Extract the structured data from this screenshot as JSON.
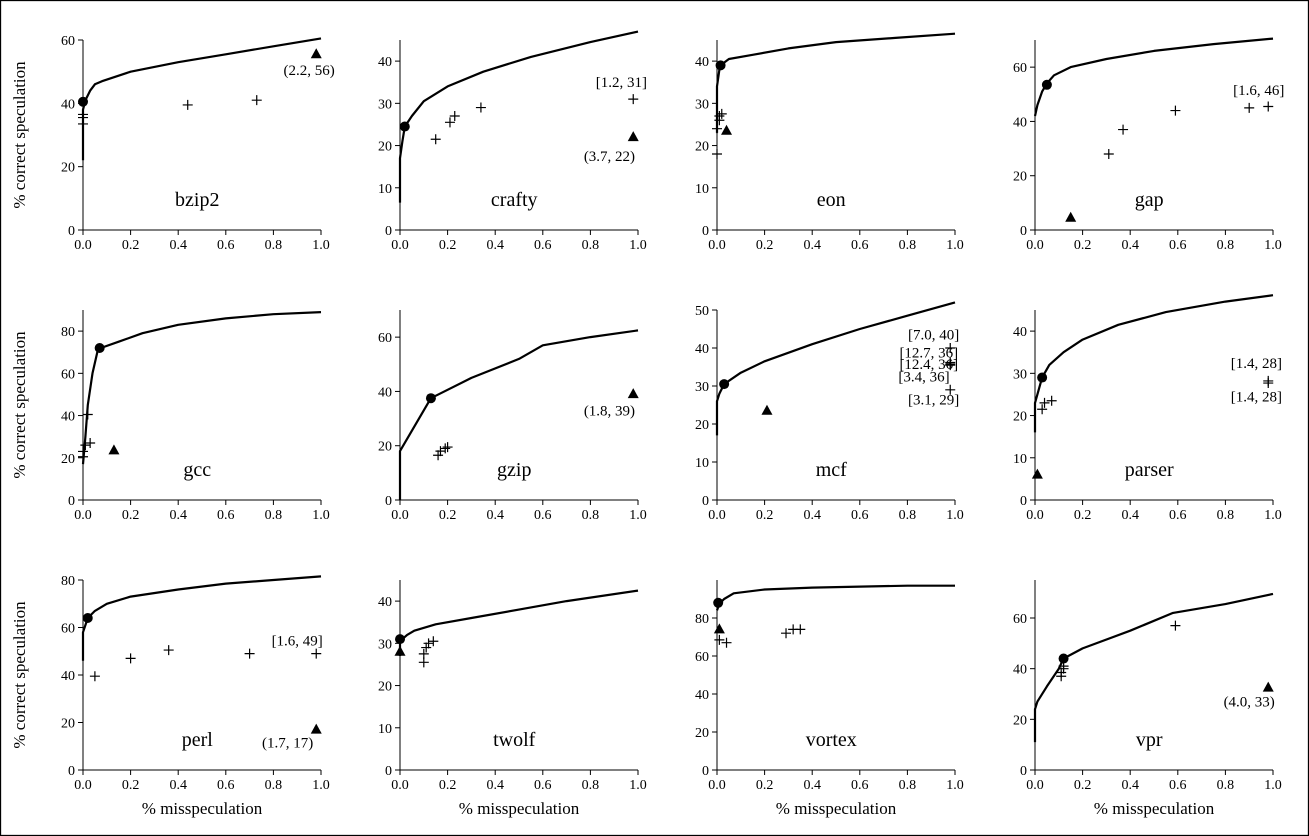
{
  "chart_data": [
    {
      "type": "scatter",
      "benchmark": "bzip2",
      "xlabel": "",
      "ylabel": "% correct speculation",
      "xlim": [
        0,
        1
      ],
      "ylim": [
        0,
        60
      ],
      "xticks": [
        "0.0",
        "0.2",
        "0.4",
        "0.6",
        "0.8",
        "1.0"
      ],
      "yticks": [
        "0",
        "20",
        "40",
        "60"
      ],
      "curve": [
        [
          0,
          22
        ],
        [
          0,
          38
        ],
        [
          0.01,
          41
        ],
        [
          0.03,
          44
        ],
        [
          0.05,
          46
        ],
        [
          0.08,
          47
        ],
        [
          0.2,
          50
        ],
        [
          0.4,
          53
        ],
        [
          0.6,
          55.5
        ],
        [
          0.8,
          58
        ],
        [
          1,
          60.5
        ]
      ],
      "highlight": [
        0,
        40.5
      ],
      "crosses": [
        [
          0,
          33.5
        ],
        [
          0,
          35.5
        ],
        [
          0,
          36.5
        ],
        [
          0.44,
          39.5
        ],
        [
          0.73,
          41
        ]
      ],
      "triangles": [
        [
          0.98,
          55.5
        ]
      ],
      "annotations": [
        {
          "text": "(2.2, 56)",
          "x": 0.95,
          "y": 50.5
        }
      ]
    },
    {
      "type": "scatter",
      "benchmark": "crafty",
      "xlabel": "",
      "ylabel": "",
      "xlim": [
        0,
        1
      ],
      "ylim": [
        0,
        45
      ],
      "xticks": [
        "0.0",
        "0.2",
        "0.4",
        "0.6",
        "0.8",
        "1.0"
      ],
      "yticks": [
        "0",
        "10",
        "20",
        "30",
        "40"
      ],
      "curve": [
        [
          0,
          6.5
        ],
        [
          0,
          17
        ],
        [
          0.01,
          21
        ],
        [
          0.02,
          24.5
        ],
        [
          0.05,
          27
        ],
        [
          0.1,
          30.5
        ],
        [
          0.2,
          34
        ],
        [
          0.35,
          37.5
        ],
        [
          0.55,
          41
        ],
        [
          0.8,
          44.5
        ],
        [
          1,
          47
        ]
      ],
      "highlight": [
        0.02,
        24.5
      ],
      "crosses": [
        [
          0.15,
          21.5
        ],
        [
          0.21,
          25.5
        ],
        [
          0.23,
          27
        ],
        [
          0.34,
          29
        ],
        [
          0.98,
          31
        ]
      ],
      "triangles": [
        [
          0.98,
          22
        ]
      ],
      "annotations": [
        {
          "text": "[1.2, 31]",
          "x": 0.93,
          "y": 35
        },
        {
          "text": "(3.7, 22)",
          "x": 0.88,
          "y": 17.5
        }
      ]
    },
    {
      "type": "scatter",
      "benchmark": "eon",
      "xlabel": "",
      "ylabel": "",
      "xlim": [
        0,
        1
      ],
      "ylim": [
        0,
        45
      ],
      "xticks": [
        "0.0",
        "0.2",
        "0.4",
        "0.6",
        "0.8",
        "1.0"
      ],
      "yticks": [
        "0",
        "10",
        "20",
        "30",
        "40"
      ],
      "curve": [
        [
          0,
          23
        ],
        [
          0,
          34
        ],
        [
          0.01,
          38
        ],
        [
          0.015,
          39
        ],
        [
          0.05,
          40.5
        ],
        [
          0.15,
          41.5
        ],
        [
          0.3,
          43
        ],
        [
          0.5,
          44.5
        ],
        [
          0.75,
          45.5
        ],
        [
          1,
          46.5
        ]
      ],
      "highlight": [
        0.015,
        39
      ],
      "crosses": [
        [
          0,
          18
        ],
        [
          0,
          24
        ],
        [
          0.01,
          26
        ],
        [
          0.01,
          27
        ],
        [
          0.02,
          27.5
        ]
      ],
      "triangles": [
        [
          0.04,
          23.5
        ]
      ],
      "annotations": []
    },
    {
      "type": "scatter",
      "benchmark": "gap",
      "xlabel": "",
      "ylabel": "",
      "xlim": [
        0,
        1
      ],
      "ylim": [
        0,
        70
      ],
      "xticks": [
        "0.0",
        "0.2",
        "0.4",
        "0.6",
        "0.8",
        "1.0"
      ],
      "yticks": [
        "0",
        "20",
        "40",
        "60"
      ],
      "curve": [
        [
          0,
          42
        ],
        [
          0.01,
          46
        ],
        [
          0.03,
          51
        ],
        [
          0.05,
          54
        ],
        [
          0.08,
          57
        ],
        [
          0.15,
          60
        ],
        [
          0.3,
          63
        ],
        [
          0.5,
          66
        ],
        [
          0.75,
          68.5
        ],
        [
          1,
          70.5
        ]
      ],
      "highlight": [
        0.05,
        53.5
      ],
      "crosses": [
        [
          0.31,
          28
        ],
        [
          0.37,
          37
        ],
        [
          0.59,
          44
        ],
        [
          0.9,
          45
        ],
        [
          0.98,
          45.5
        ]
      ],
      "triangles": [
        [
          0.15,
          4.5
        ]
      ],
      "annotations": [
        {
          "text": "[1.6, 46]",
          "x": 0.94,
          "y": 51.5
        }
      ]
    },
    {
      "type": "scatter",
      "benchmark": "gcc",
      "xlabel": "",
      "ylabel": "% correct speculation",
      "xlim": [
        0,
        1
      ],
      "ylim": [
        0,
        90
      ],
      "xticks": [
        "0.0",
        "0.2",
        "0.4",
        "0.6",
        "0.8",
        "1.0"
      ],
      "yticks": [
        "0",
        "20",
        "40",
        "60",
        "80"
      ],
      "curve": [
        [
          0,
          17
        ],
        [
          0.01,
          30
        ],
        [
          0.02,
          45
        ],
        [
          0.04,
          60
        ],
        [
          0.06,
          70
        ],
        [
          0.075,
          72
        ],
        [
          0.15,
          75
        ],
        [
          0.25,
          79
        ],
        [
          0.4,
          83
        ],
        [
          0.6,
          86
        ],
        [
          0.8,
          88
        ],
        [
          1,
          89
        ]
      ],
      "highlight": [
        0.07,
        72
      ],
      "crosses": [
        [
          0,
          20.5
        ],
        [
          0,
          23
        ],
        [
          0.01,
          26
        ],
        [
          0.03,
          27
        ],
        [
          0.02,
          40.5
        ]
      ],
      "triangles": [
        [
          0.13,
          23.5
        ]
      ],
      "annotations": []
    },
    {
      "type": "scatter",
      "benchmark": "gzip",
      "xlabel": "",
      "ylabel": "",
      "xlim": [
        0,
        1
      ],
      "ylim": [
        0,
        70
      ],
      "xticks": [
        "0.0",
        "0.2",
        "0.4",
        "0.6",
        "0.8",
        "1.0"
      ],
      "yticks": [
        "0",
        "20",
        "40",
        "60"
      ],
      "curve": [
        [
          0,
          0
        ],
        [
          0,
          18
        ],
        [
          0.13,
          37.5
        ],
        [
          0.3,
          45
        ],
        [
          0.5,
          52
        ],
        [
          0.6,
          57
        ],
        [
          0.8,
          60
        ],
        [
          1,
          62.5
        ]
      ],
      "highlight": [
        0.13,
        37.5
      ],
      "crosses": [
        [
          0.16,
          16.5
        ],
        [
          0.17,
          18
        ],
        [
          0.19,
          19
        ],
        [
          0.2,
          19.5
        ]
      ],
      "triangles": [
        [
          0.98,
          39
        ]
      ],
      "annotations": [
        {
          "text": "(1.8, 39)",
          "x": 0.88,
          "y": 33
        }
      ]
    },
    {
      "type": "scatter",
      "benchmark": "mcf",
      "xlabel": "",
      "ylabel": "",
      "xlim": [
        0,
        1
      ],
      "ylim": [
        0,
        50
      ],
      "xticks": [
        "0.0",
        "0.2",
        "0.4",
        "0.6",
        "0.8",
        "1.0"
      ],
      "yticks": [
        "0",
        "10",
        "20",
        "30",
        "40",
        "50"
      ],
      "curve": [
        [
          0,
          17
        ],
        [
          0,
          26
        ],
        [
          0.01,
          28
        ],
        [
          0.03,
          30.5
        ],
        [
          0.1,
          33.5
        ],
        [
          0.2,
          36.5
        ],
        [
          0.4,
          41
        ],
        [
          0.6,
          45
        ],
        [
          0.8,
          48.5
        ],
        [
          1,
          52
        ]
      ],
      "highlight": [
        0.03,
        30.5
      ],
      "crosses": [
        [
          0.98,
          40
        ],
        [
          0.98,
          36.2
        ],
        [
          0.98,
          35.8
        ],
        [
          0.98,
          35.5
        ],
        [
          0.98,
          29
        ]
      ],
      "triangles": [
        [
          0.21,
          23.5
        ]
      ],
      "annotations": [
        {
          "text": "[7.0, 40]",
          "x": 0.91,
          "y": 43.5
        },
        {
          "text": "[12.7, 36]",
          "x": 0.89,
          "y": 38.8
        },
        {
          "text": "[12.4, 36]",
          "x": 0.89,
          "y": 35.8
        },
        {
          "text": "[3.4, 36]",
          "x": 0.87,
          "y": 32.5
        },
        {
          "text": "[3.1, 29]",
          "x": 0.91,
          "y": 26.5
        }
      ]
    },
    {
      "type": "scatter",
      "benchmark": "parser",
      "xlabel": "",
      "ylabel": "",
      "xlim": [
        0,
        1
      ],
      "ylim": [
        0,
        45
      ],
      "xticks": [
        "0.0",
        "0.2",
        "0.4",
        "0.6",
        "0.8",
        "1.0"
      ],
      "yticks": [
        "0",
        "10",
        "20",
        "30",
        "40"
      ],
      "curve": [
        [
          0,
          16
        ],
        [
          0,
          23
        ],
        [
          0.01,
          25
        ],
        [
          0.03,
          29
        ],
        [
          0.06,
          32
        ],
        [
          0.12,
          35
        ],
        [
          0.2,
          38
        ],
        [
          0.35,
          41.5
        ],
        [
          0.55,
          44.5
        ],
        [
          0.8,
          47
        ],
        [
          1,
          48.5
        ]
      ],
      "highlight": [
        0.03,
        29
      ],
      "crosses": [
        [
          0.03,
          21.5
        ],
        [
          0.04,
          23
        ],
        [
          0.07,
          23.5
        ],
        [
          0.98,
          27.7
        ],
        [
          0.98,
          28.2
        ]
      ],
      "triangles": [
        [
          0.01,
          6
        ]
      ],
      "annotations": [
        {
          "text": "[1.4, 28]",
          "x": 0.93,
          "y": 32.5
        },
        {
          "text": "[1.4, 28]",
          "x": 0.93,
          "y": 24.5
        }
      ]
    },
    {
      "type": "scatter",
      "benchmark": "perl",
      "xlabel": "% misspeculation",
      "ylabel": "% correct speculation",
      "xlim": [
        0,
        1
      ],
      "ylim": [
        0,
        80
      ],
      "xticks": [
        "0.0",
        "0.2",
        "0.4",
        "0.6",
        "0.8",
        "1.0"
      ],
      "yticks": [
        "0",
        "20",
        "40",
        "60",
        "80"
      ],
      "curve": [
        [
          0,
          46
        ],
        [
          0,
          58
        ],
        [
          0.01,
          61
        ],
        [
          0.02,
          64
        ],
        [
          0.05,
          67
        ],
        [
          0.1,
          70
        ],
        [
          0.2,
          73
        ],
        [
          0.4,
          76
        ],
        [
          0.6,
          78.5
        ],
        [
          0.8,
          80
        ],
        [
          1,
          81.5
        ]
      ],
      "highlight": [
        0.02,
        64
      ],
      "crosses": [
        [
          0.05,
          39.5
        ],
        [
          0.2,
          47
        ],
        [
          0.36,
          50.5
        ],
        [
          0.7,
          49
        ],
        [
          0.98,
          49
        ]
      ],
      "triangles": [
        [
          0.98,
          17
        ]
      ],
      "annotations": [
        {
          "text": "[1.6, 49]",
          "x": 0.9,
          "y": 54.5
        },
        {
          "text": "(1.7, 17)",
          "x": 0.86,
          "y": 11.5
        }
      ]
    },
    {
      "type": "scatter",
      "benchmark": "twolf",
      "xlabel": "% misspeculation",
      "ylabel": "",
      "xlim": [
        0,
        1
      ],
      "ylim": [
        0,
        45
      ],
      "xticks": [
        "0.0",
        "0.2",
        "0.4",
        "0.6",
        "0.8",
        "1.0"
      ],
      "yticks": [
        "0",
        "10",
        "20",
        "30",
        "40"
      ],
      "curve": [
        [
          0,
          27
        ],
        [
          0,
          30
        ],
        [
          0.01,
          31
        ],
        [
          0.03,
          32
        ],
        [
          0.06,
          33
        ],
        [
          0.15,
          34.5
        ],
        [
          0.3,
          36
        ],
        [
          0.5,
          38
        ],
        [
          0.7,
          40
        ],
        [
          1,
          42.5
        ]
      ],
      "highlight": [
        0,
        31
      ],
      "crosses": [
        [
          0.1,
          25.5
        ],
        [
          0.1,
          27.5
        ],
        [
          0.11,
          29
        ],
        [
          0.12,
          30
        ],
        [
          0.14,
          30.5
        ]
      ],
      "triangles": [
        [
          0,
          28
        ]
      ],
      "annotations": []
    },
    {
      "type": "scatter",
      "benchmark": "vortex",
      "xlabel": "% misspeculation",
      "ylabel": "",
      "xlim": [
        0,
        1
      ],
      "ylim": [
        0,
        100
      ],
      "xticks": [
        "0.0",
        "0.2",
        "0.4",
        "0.6",
        "0.8",
        "1.0"
      ],
      "yticks": [
        "0",
        "20",
        "40",
        "60",
        "80"
      ],
      "curve": [
        [
          0,
          84
        ],
        [
          0.01,
          87.5
        ],
        [
          0.03,
          90
        ],
        [
          0.07,
          93
        ],
        [
          0.2,
          95
        ],
        [
          0.4,
          96
        ],
        [
          0.6,
          96.5
        ],
        [
          0.8,
          97
        ],
        [
          1,
          97
        ]
      ],
      "highlight": [
        0.005,
        88
      ],
      "crosses": [
        [
          0.01,
          68.5
        ],
        [
          0.04,
          67
        ],
        [
          0.29,
          72
        ],
        [
          0.32,
          74
        ],
        [
          0.35,
          74
        ]
      ],
      "triangles": [
        [
          0.01,
          74
        ]
      ],
      "annotations": []
    },
    {
      "type": "scatter",
      "benchmark": "vpr",
      "xlabel": "% misspeculation",
      "ylabel": "",
      "xlim": [
        0,
        1
      ],
      "ylim": [
        0,
        75
      ],
      "xticks": [
        "0.0",
        "0.2",
        "0.4",
        "0.6",
        "0.8",
        "1.0"
      ],
      "yticks": [
        "0",
        "20",
        "40",
        "60"
      ],
      "curve": [
        [
          0,
          11
        ],
        [
          0,
          24
        ],
        [
          0.01,
          27
        ],
        [
          0.05,
          33
        ],
        [
          0.1,
          40
        ],
        [
          0.12,
          44
        ],
        [
          0.2,
          48
        ],
        [
          0.4,
          55
        ],
        [
          0.58,
          62
        ],
        [
          0.8,
          65.5
        ],
        [
          1,
          69.5
        ]
      ],
      "highlight": [
        0.12,
        44
      ],
      "crosses": [
        [
          0.11,
          37
        ],
        [
          0.11,
          38.5
        ],
        [
          0.12,
          40
        ],
        [
          0.12,
          41
        ],
        [
          0.59,
          57
        ]
      ],
      "triangles": [
        [
          0.98,
          32.5
        ]
      ],
      "annotations": [
        {
          "text": "(4.0, 33)",
          "x": 0.9,
          "y": 27
        }
      ]
    }
  ]
}
